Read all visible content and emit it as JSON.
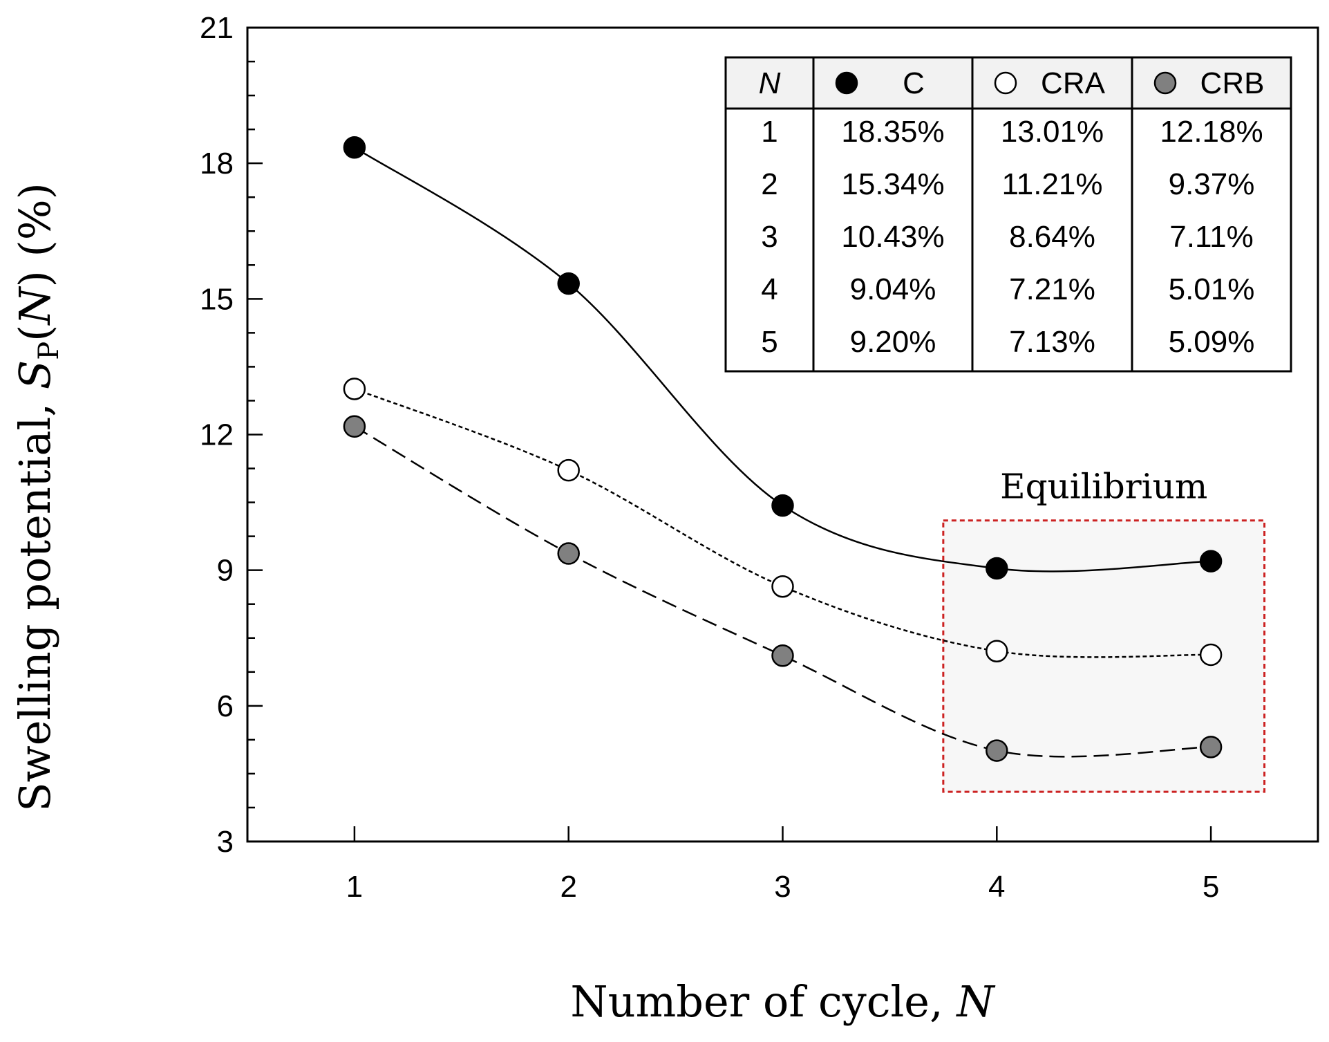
{
  "chart_data": {
    "type": "line",
    "xlabel": "Number of cycle, N",
    "ylabel": "Swelling potential, SP(N) (%)",
    "xlim": [
      0.5,
      5.5
    ],
    "ylim": [
      3,
      21
    ],
    "x": [
      1,
      2,
      3,
      4,
      5
    ],
    "xticks": [
      1,
      2,
      3,
      4,
      5
    ],
    "yticks": [
      3,
      6,
      9,
      12,
      15,
      18,
      21
    ],
    "series": [
      {
        "name": "C",
        "values": [
          18.35,
          15.34,
          10.43,
          9.04,
          9.2
        ],
        "marker_fill": "#000000",
        "line_style": "solid"
      },
      {
        "name": "CRA",
        "values": [
          13.01,
          11.21,
          8.64,
          7.21,
          7.13
        ],
        "marker_fill": "#ffffff",
        "line_style": "dotted"
      },
      {
        "name": "CRB",
        "values": [
          12.18,
          9.37,
          7.11,
          5.01,
          5.09
        ],
        "marker_fill": "#808080",
        "line_style": "dashed"
      }
    ],
    "table": {
      "header": [
        "N",
        "C",
        "CRA",
        "CRB"
      ],
      "rows": [
        [
          "1",
          "18.35%",
          "13.01%",
          "12.18%"
        ],
        [
          "2",
          "15.34%",
          "11.21%",
          "9.37%"
        ],
        [
          "3",
          "10.43%",
          "8.64%",
          "7.11%"
        ],
        [
          "4",
          "9.04%",
          "7.21%",
          "5.01%"
        ],
        [
          "5",
          "9.20%",
          "7.13%",
          "5.09%"
        ]
      ]
    },
    "annotation": {
      "label": "Equilibrium",
      "x_range": [
        3.75,
        5.25
      ],
      "y_range": [
        4.1,
        10.1
      ],
      "border_color": "#cc2222",
      "fill": "#f7f7f7"
    },
    "ylabel_parts": {
      "prefix": "Swelling potential, ",
      "sym": "S",
      "sub": "P",
      "paren_open": "(",
      "var": "N",
      "suffix": ") (%)"
    },
    "xlabel_parts": {
      "prefix": "Number of cycle, ",
      "var": "N"
    }
  }
}
